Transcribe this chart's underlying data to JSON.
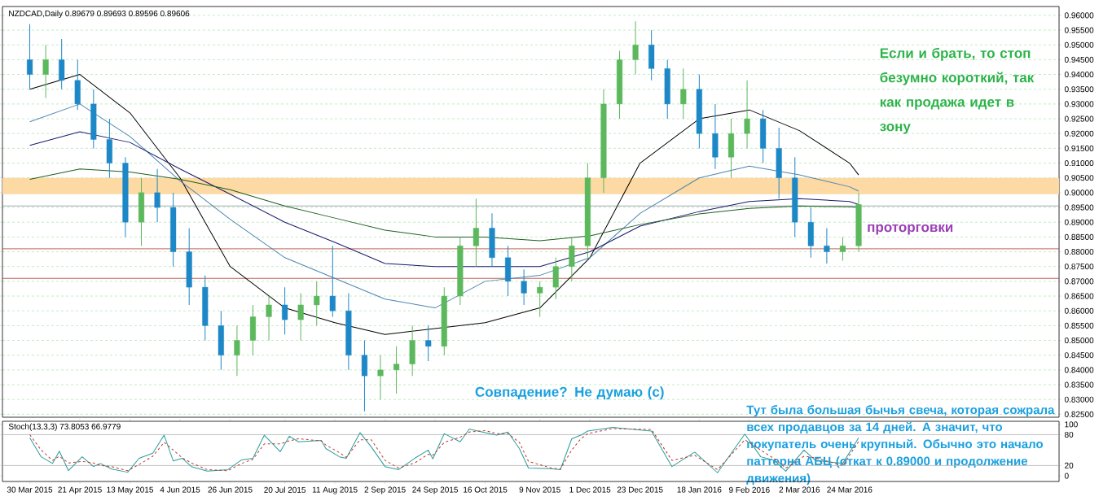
{
  "chart_data": [
    {
      "type": "candlestick",
      "title": "NZDCAD,Daily  0.89679 0.89693 0.89596 0.89606",
      "x": [
        "2015-03-30",
        "2015-04-06",
        "2015-04-13",
        "2015-04-20",
        "2015-04-27",
        "2015-05-04",
        "2015-05-11",
        "2015-05-18",
        "2015-05-25",
        "2015-06-01",
        "2015-06-08",
        "2015-06-15",
        "2015-06-22",
        "2015-06-29",
        "2015-07-06",
        "2015-07-13",
        "2015-07-20",
        "2015-07-27",
        "2015-08-03",
        "2015-08-10",
        "2015-08-17",
        "2015-08-24",
        "2015-08-31",
        "2015-09-07",
        "2015-09-14",
        "2015-09-21",
        "2015-09-28",
        "2015-10-05",
        "2015-10-12",
        "2015-10-19",
        "2015-10-26",
        "2015-11-02",
        "2015-11-09",
        "2015-11-16",
        "2015-11-23",
        "2015-11-30",
        "2015-12-07",
        "2015-12-14",
        "2015-12-21",
        "2015-12-28",
        "2016-01-04",
        "2016-01-11",
        "2016-01-18",
        "2016-01-25",
        "2016-02-01",
        "2016-02-08",
        "2016-02-15",
        "2016-02-22",
        "2016-02-29",
        "2016-03-07",
        "2016-03-14",
        "2016-03-21",
        "2016-03-28"
      ],
      "ohlc": [
        [
          0.945,
          0.957,
          0.935,
          0.94
        ],
        [
          0.94,
          0.95,
          0.932,
          0.945
        ],
        [
          0.945,
          0.952,
          0.935,
          0.938
        ],
        [
          0.938,
          0.945,
          0.928,
          0.93
        ],
        [
          0.93,
          0.935,
          0.915,
          0.918
        ],
        [
          0.918,
          0.925,
          0.905,
          0.91
        ],
        [
          0.91,
          0.912,
          0.885,
          0.89
        ],
        [
          0.89,
          0.905,
          0.882,
          0.9
        ],
        [
          0.9,
          0.908,
          0.89,
          0.895
        ],
        [
          0.895,
          0.9,
          0.875,
          0.88
        ],
        [
          0.88,
          0.888,
          0.862,
          0.868
        ],
        [
          0.868,
          0.872,
          0.85,
          0.855
        ],
        [
          0.855,
          0.86,
          0.84,
          0.845
        ],
        [
          0.845,
          0.855,
          0.838,
          0.85
        ],
        [
          0.85,
          0.862,
          0.845,
          0.858
        ],
        [
          0.858,
          0.865,
          0.85,
          0.862
        ],
        [
          0.862,
          0.868,
          0.852,
          0.857
        ],
        [
          0.857,
          0.866,
          0.85,
          0.862
        ],
        [
          0.862,
          0.87,
          0.855,
          0.865
        ],
        [
          0.865,
          0.882,
          0.858,
          0.86
        ],
        [
          0.86,
          0.866,
          0.84,
          0.845
        ],
        [
          0.845,
          0.85,
          0.826,
          0.838
        ],
        [
          0.838,
          0.845,
          0.83,
          0.84
        ],
        [
          0.84,
          0.848,
          0.832,
          0.842
        ],
        [
          0.842,
          0.855,
          0.838,
          0.85
        ],
        [
          0.85,
          0.855,
          0.843,
          0.848
        ],
        [
          0.848,
          0.868,
          0.845,
          0.865
        ],
        [
          0.865,
          0.885,
          0.862,
          0.882
        ],
        [
          0.882,
          0.898,
          0.875,
          0.888
        ],
        [
          0.888,
          0.893,
          0.875,
          0.878
        ],
        [
          0.878,
          0.882,
          0.865,
          0.87
        ],
        [
          0.87,
          0.874,
          0.862,
          0.866
        ],
        [
          0.866,
          0.87,
          0.858,
          0.868
        ],
        [
          0.868,
          0.878,
          0.864,
          0.875
        ],
        [
          0.875,
          0.885,
          0.87,
          0.882
        ],
        [
          0.882,
          0.91,
          0.878,
          0.905
        ],
        [
          0.905,
          0.935,
          0.9,
          0.93
        ],
        [
          0.93,
          0.948,
          0.925,
          0.945
        ],
        [
          0.945,
          0.958,
          0.94,
          0.95
        ],
        [
          0.95,
          0.955,
          0.938,
          0.942
        ],
        [
          0.942,
          0.945,
          0.925,
          0.93
        ],
        [
          0.93,
          0.942,
          0.925,
          0.935
        ],
        [
          0.935,
          0.94,
          0.915,
          0.92
        ],
        [
          0.92,
          0.93,
          0.908,
          0.912
        ],
        [
          0.912,
          0.925,
          0.905,
          0.92
        ],
        [
          0.92,
          0.938,
          0.915,
          0.925
        ],
        [
          0.925,
          0.928,
          0.91,
          0.915
        ],
        [
          0.915,
          0.922,
          0.898,
          0.905
        ],
        [
          0.905,
          0.912,
          0.885,
          0.89
        ],
        [
          0.89,
          0.895,
          0.878,
          0.882
        ],
        [
          0.882,
          0.888,
          0.876,
          0.88
        ],
        [
          0.88,
          0.885,
          0.877,
          0.882
        ],
        [
          0.882,
          0.9,
          0.88,
          0.896
        ]
      ],
      "colors": [
        "#1e88c7",
        "#5cb85c",
        "#1e88c7",
        "#1e88c7",
        "#1e88c7",
        "#1e88c7",
        "#1e88c7",
        "#5cb85c",
        "#1e88c7",
        "#1e88c7",
        "#1e88c7",
        "#1e88c7",
        "#1e88c7",
        "#5cb85c",
        "#5cb85c",
        "#5cb85c",
        "#1e88c7",
        "#5cb85c",
        "#5cb85c",
        "#1e88c7",
        "#1e88c7",
        "#1e88c7",
        "#5cb85c",
        "#5cb85c",
        "#5cb85c",
        "#1e88c7",
        "#5cb85c",
        "#5cb85c",
        "#5cb85c",
        "#1e88c7",
        "#1e88c7",
        "#1e88c7",
        "#5cb85c",
        "#5cb85c",
        "#5cb85c",
        "#5cb85c",
        "#5cb85c",
        "#5cb85c",
        "#5cb85c",
        "#1e88c7",
        "#1e88c7",
        "#5cb85c",
        "#1e88c7",
        "#1e88c7",
        "#5cb85c",
        "#5cb85c",
        "#1e88c7",
        "#1e88c7",
        "#1e88c7",
        "#1e88c7",
        "#1e88c7",
        "#5cb85c",
        "#5cb85c"
      ],
      "series": [
        {
          "type": "line",
          "color": "#000000",
          "x": [
            "2015-03-30",
            "2015-04-21",
            "2015-05-13",
            "2015-06-04",
            "2015-06-26",
            "2015-07-20",
            "2015-08-11",
            "2015-09-02",
            "2015-09-24",
            "2015-10-16",
            "2015-11-09",
            "2015-12-01",
            "2015-12-23",
            "2016-01-18",
            "2016-02-09",
            "2016-03-02",
            "2016-03-24",
            "2016-03-28"
          ],
          "values": [
            0.935,
            0.94,
            0.927,
            0.905,
            0.875,
            0.861,
            0.856,
            0.852,
            0.854,
            0.856,
            0.861,
            0.878,
            0.91,
            0.925,
            0.928,
            0.921,
            0.91,
            0.906
          ]
        },
        {
          "type": "line",
          "color": "#4a86b0",
          "x": [
            "2015-03-30",
            "2015-04-21",
            "2015-05-13",
            "2015-06-04",
            "2015-06-26",
            "2015-07-20",
            "2015-08-11",
            "2015-09-02",
            "2015-09-24",
            "2015-10-16",
            "2015-11-09",
            "2015-12-01",
            "2015-12-23",
            "2016-01-18",
            "2016-02-09",
            "2016-03-02",
            "2016-03-24",
            "2016-03-28"
          ],
          "values": [
            0.924,
            0.93,
            0.919,
            0.904,
            0.891,
            0.878,
            0.871,
            0.864,
            0.861,
            0.87,
            0.872,
            0.878,
            0.893,
            0.905,
            0.909,
            0.906,
            0.902,
            0.9005
          ]
        },
        {
          "type": "line",
          "color": "#1a1a6e",
          "x": [
            "2015-03-30",
            "2015-04-21",
            "2015-05-13",
            "2015-06-04",
            "2015-06-26",
            "2015-07-20",
            "2015-08-11",
            "2015-09-02",
            "2015-09-24",
            "2015-10-16",
            "2015-11-09",
            "2015-12-01",
            "2015-12-23",
            "2016-01-18",
            "2016-02-09",
            "2016-03-02",
            "2016-03-24",
            "2016-03-28"
          ],
          "values": [
            0.916,
            0.9206,
            0.917,
            0.908,
            0.8995,
            0.89,
            0.8832,
            0.876,
            0.875,
            0.875,
            0.875,
            0.88,
            0.8887,
            0.8936,
            0.897,
            0.898,
            0.897,
            0.896
          ]
        },
        {
          "type": "line",
          "color": "#1f5f1f",
          "x": [
            "2015-03-30",
            "2015-04-21",
            "2015-05-13",
            "2015-06-04",
            "2015-06-26",
            "2015-07-20",
            "2015-08-11",
            "2015-09-02",
            "2015-09-24",
            "2015-10-16",
            "2015-11-09",
            "2015-12-01",
            "2015-12-23",
            "2016-01-18",
            "2016-02-09",
            "2016-03-02",
            "2016-03-24",
            "2016-03-28"
          ],
          "values": [
            0.9045,
            0.908,
            0.907,
            0.9045,
            0.901,
            0.8955,
            0.8914,
            0.8873,
            0.885,
            0.885,
            0.8837,
            0.8854,
            0.8892,
            0.8928,
            0.8947,
            0.8955,
            0.8952,
            0.895
          ]
        }
      ],
      "xlim": [
        "2015-03-18",
        "2016-06-24"
      ],
      "ylim": [
        0.824,
        0.963
      ],
      "yticks": [
        {
          "value": 0.825,
          "label": "0.82500"
        },
        {
          "value": 0.83,
          "label": "0.83000"
        },
        {
          "value": 0.835,
          "label": "0.83500"
        },
        {
          "value": 0.84,
          "label": "0.84000"
        },
        {
          "value": 0.845,
          "label": "0.84500"
        },
        {
          "value": 0.85,
          "label": "0.85000"
        },
        {
          "value": 0.855,
          "label": "0.85500"
        },
        {
          "value": 0.86,
          "label": "0.86000"
        },
        {
          "value": 0.865,
          "label": "0.86500"
        },
        {
          "value": 0.87,
          "label": "0.87000"
        },
        {
          "value": 0.875,
          "label": "0.87500"
        },
        {
          "value": 0.88,
          "label": "0.88000"
        },
        {
          "value": 0.885,
          "label": "0.88500"
        },
        {
          "value": 0.89,
          "label": "0.89000"
        },
        {
          "value": 0.895,
          "label": "0.89500"
        },
        {
          "value": 0.9,
          "label": "0.90000"
        },
        {
          "value": 0.905,
          "label": "0.90500"
        },
        {
          "value": 0.91,
          "label": "0.91000"
        },
        {
          "value": 0.915,
          "label": "0.91500"
        },
        {
          "value": 0.92,
          "label": "0.92000"
        },
        {
          "value": 0.925,
          "label": "0.92500"
        },
        {
          "value": 0.93,
          "label": "0.93000"
        },
        {
          "value": 0.935,
          "label": "0.93500"
        },
        {
          "value": 0.94,
          "label": "0.94000"
        },
        {
          "value": 0.945,
          "label": "0.94500"
        },
        {
          "value": 0.95,
          "label": "0.95000"
        },
        {
          "value": 0.955,
          "label": "0.95500"
        },
        {
          "value": 0.96,
          "label": "0.96000"
        }
      ],
      "tick_labels": "y",
      "grid": "y",
      "ref_lines": [
        {
          "axis": "y",
          "value": 0.8955,
          "color": "#8c959f"
        },
        {
          "axis": "y",
          "value": 0.881,
          "color": "#b03a2e"
        },
        {
          "axis": "y",
          "value": 0.871,
          "color": "#b03a2e"
        }
      ],
      "bands": [
        {
          "axis": "y",
          "from": 0.8995,
          "to": 0.905,
          "color": "#fdd9a3"
        }
      ],
      "annotations": [
        "Если и брать, то стоп безумно короткий, так как продажа идет в зону",
        "проторговки",
        "Совпадение? Не думаю (с)",
        "Тут была большая бычья свеча, которая сожрала всех продавцов за 14 дней. А значит, что покупатель очень крупный. Обычно это начало паттерна АБЦ (откат к 0.89000 и продолжение движения)"
      ]
    },
    {
      "type": "line",
      "title": "Stoch(13,3,3) 73.8053 66.9779",
      "series": [
        {
          "color": "#2a9d9d",
          "line_style": "solid",
          "x": [
            "2015-03-30",
            "2015-04-04",
            "2015-04-09",
            "2015-04-12",
            "2015-04-16",
            "2015-04-22",
            "2015-04-27",
            "2015-04-30",
            "2015-05-05",
            "2015-05-12",
            "2015-05-17",
            "2015-05-23",
            "2015-05-28",
            "2015-06-01",
            "2015-06-05",
            "2015-06-09",
            "2015-06-16",
            "2015-06-25",
            "2015-07-01",
            "2015-07-06",
            "2015-07-11",
            "2015-07-18",
            "2015-07-22",
            "2015-07-26",
            "2015-08-05",
            "2015-08-07",
            "2015-08-13",
            "2015-08-16",
            "2015-08-22",
            "2015-08-27",
            "2015-09-02",
            "2015-09-08",
            "2015-09-15",
            "2015-09-21",
            "2015-09-23",
            "2015-09-28",
            "2015-10-05",
            "2015-10-09",
            "2015-10-16",
            "2015-10-21",
            "2015-10-26",
            "2015-10-31",
            "2015-11-04",
            "2015-11-14",
            "2015-11-18",
            "2015-11-23",
            "2015-11-27",
            "2015-11-30",
            "2015-12-11",
            "2015-12-28",
            "2016-01-06",
            "2016-01-16",
            "2016-01-26",
            "2016-02-07",
            "2016-02-14",
            "2016-02-20",
            "2016-02-25",
            "2016-03-04",
            "2016-03-09",
            "2016-03-21",
            "2016-03-28"
          ],
          "values": [
            74,
            37,
            24,
            48,
            10,
            37,
            18,
            24,
            13,
            7,
            34,
            44,
            79,
            29,
            34,
            18,
            9,
            12,
            31,
            34,
            79,
            47,
            77,
            66,
            69,
            53,
            37,
            34,
            84,
            56,
            18,
            12,
            34,
            50,
            33,
            82,
            66,
            91,
            84,
            79,
            85,
            53,
            15,
            14,
            12,
            72,
            79,
            87,
            94,
            87,
            18,
            46,
            6,
            81,
            37,
            30,
            9,
            50,
            30,
            24,
            74
          ]
        },
        {
          "color": "#c0392b",
          "line_style": "dashed",
          "x": [
            "2015-03-30",
            "2015-04-04",
            "2015-04-09",
            "2015-04-12",
            "2015-04-16",
            "2015-04-22",
            "2015-04-27",
            "2015-04-30",
            "2015-05-05",
            "2015-05-12",
            "2015-05-17",
            "2015-05-23",
            "2015-05-28",
            "2015-06-01",
            "2015-06-05",
            "2015-06-09",
            "2015-06-16",
            "2015-06-25",
            "2015-07-01",
            "2015-07-06",
            "2015-07-11",
            "2015-07-18",
            "2015-07-22",
            "2015-07-26",
            "2015-08-05",
            "2015-08-07",
            "2015-08-13",
            "2015-08-16",
            "2015-08-22",
            "2015-08-27",
            "2015-09-02",
            "2015-09-08",
            "2015-09-15",
            "2015-09-21",
            "2015-09-23",
            "2015-09-28",
            "2015-10-05",
            "2015-10-09",
            "2015-10-16",
            "2015-10-21",
            "2015-10-26",
            "2015-10-31",
            "2015-11-04",
            "2015-11-14",
            "2015-11-18",
            "2015-11-23",
            "2015-11-27",
            "2015-11-30",
            "2015-12-11",
            "2015-12-28",
            "2016-01-06",
            "2016-01-16",
            "2016-01-26",
            "2016-02-07",
            "2016-02-14",
            "2016-02-20",
            "2016-02-25",
            "2016-03-04",
            "2016-03-09",
            "2016-03-21",
            "2016-03-28"
          ],
          "values": [
            80,
            50,
            30,
            38,
            25,
            28,
            25,
            20,
            18,
            10,
            22,
            38,
            65,
            50,
            35,
            25,
            12,
            10,
            24,
            32,
            62,
            62,
            68,
            72,
            68,
            60,
            45,
            36,
            70,
            70,
            30,
            15,
            25,
            42,
            40,
            65,
            75,
            85,
            88,
            82,
            82,
            65,
            28,
            15,
            13,
            50,
            72,
            82,
            92,
            90,
            30,
            40,
            12,
            70,
            50,
            33,
            15,
            38,
            35,
            20,
            67
          ]
        }
      ],
      "xlim": [
        "2015-03-18",
        "2016-06-24"
      ],
      "ylim": [
        -11,
        106
      ],
      "xticks": [
        {
          "value": "2015-03-30",
          "label": "30 Mar 2015"
        },
        {
          "value": "2015-04-21",
          "label": "21 Apr 2015"
        },
        {
          "value": "2015-05-13",
          "label": "13 May 2015"
        },
        {
          "value": "2015-06-04",
          "label": "4 Jun 2015"
        },
        {
          "value": "2015-06-26",
          "label": "26 Jun 2015"
        },
        {
          "value": "2015-07-20",
          "label": "20 Jul 2015"
        },
        {
          "value": "2015-08-11",
          "label": "11 Aug 2015"
        },
        {
          "value": "2015-09-02",
          "label": "2 Sep 2015"
        },
        {
          "value": "2015-09-24",
          "label": "24 Sep 2015"
        },
        {
          "value": "2015-10-16",
          "label": "16 Oct 2015"
        },
        {
          "value": "2015-11-09",
          "label": "9 Nov 2015"
        },
        {
          "value": "2015-12-01",
          "label": "1 Dec 2015"
        },
        {
          "value": "2015-12-23",
          "label": "23 Dec 2015"
        },
        {
          "value": "2016-01-18",
          "label": "18 Jan 2016"
        },
        {
          "value": "2016-02-09",
          "label": "9 Feb 2016"
        },
        {
          "value": "2016-03-02",
          "label": "2 Mar 2016"
        },
        {
          "value": "2016-03-24",
          "label": "24 Mar 2016"
        }
      ],
      "yticks": [
        0,
        20,
        80,
        100
      ],
      "ref_lines": [
        {
          "axis": "y",
          "value": 20,
          "color": "#b0b0b0"
        },
        {
          "axis": "y",
          "value": 80,
          "color": "#b0b0b0"
        }
      ]
    }
  ]
}
